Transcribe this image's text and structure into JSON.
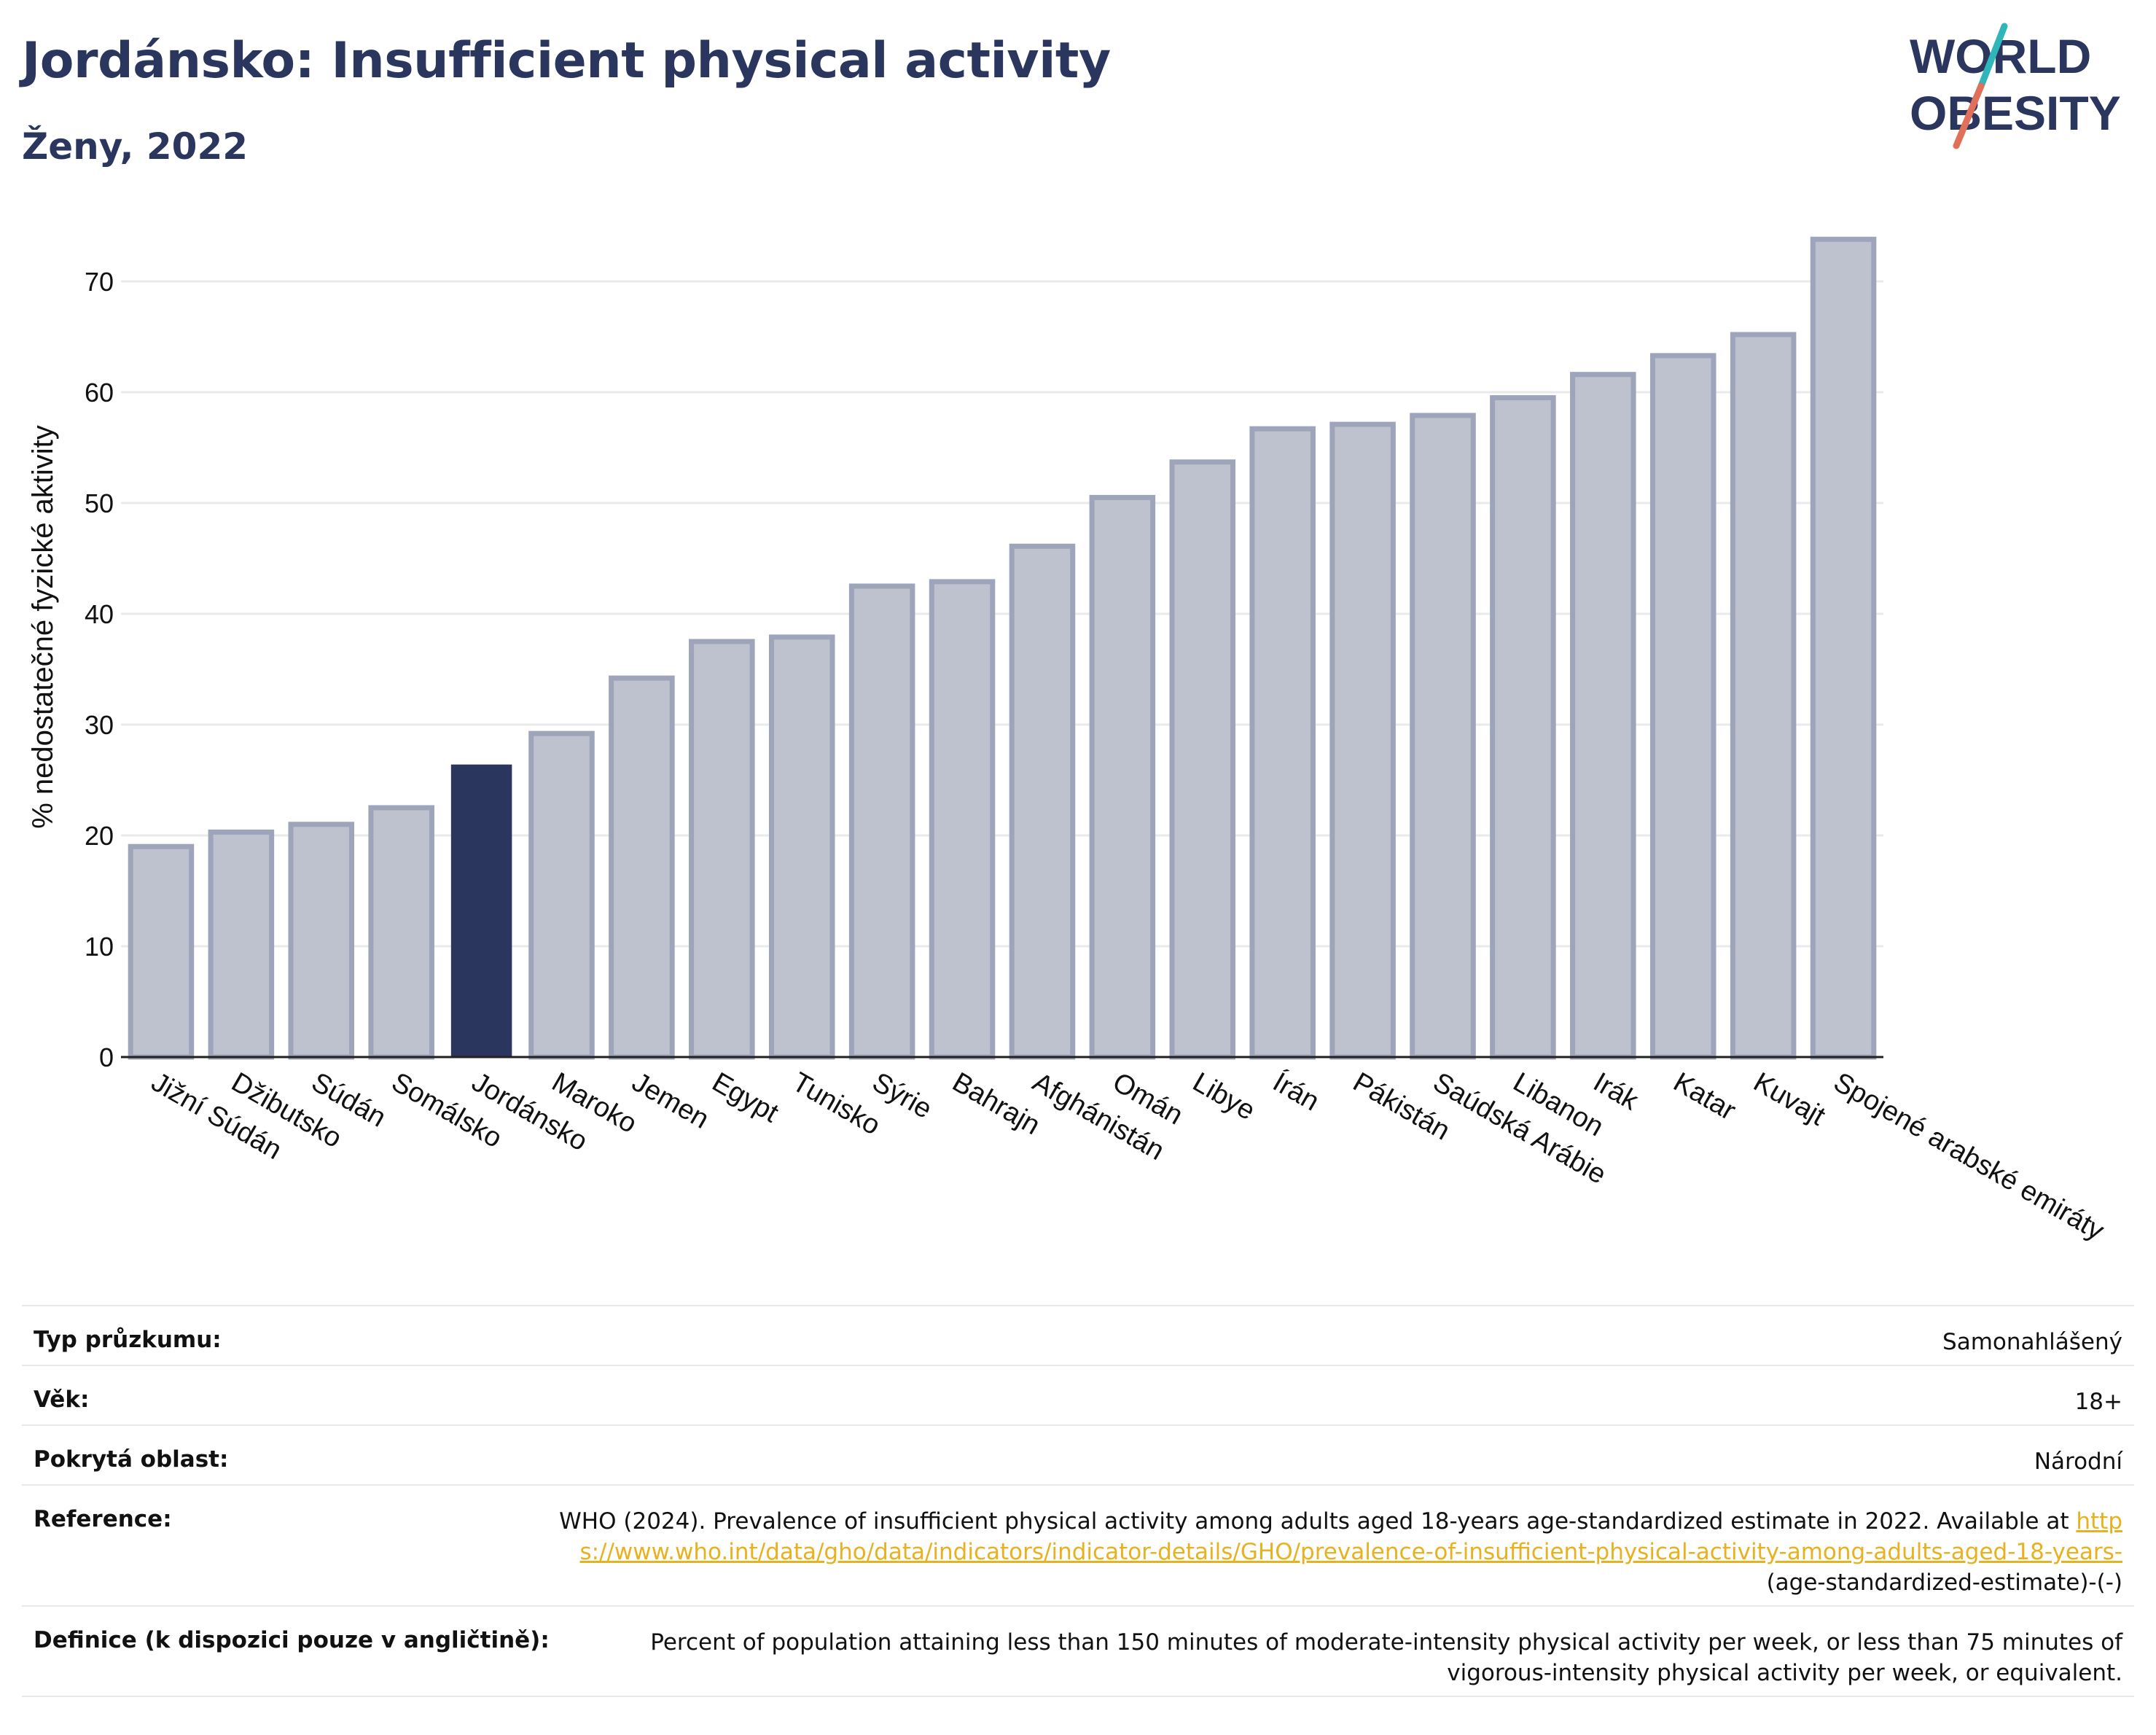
{
  "header": {
    "title": "Jordánsko: Insufficient physical activity",
    "subtitle": "Ženy, 2022"
  },
  "logo": {
    "line1": "WORLD",
    "line2": "OBESITY",
    "colors": {
      "text": "#2b365e",
      "slash_teal": "#2fb6b8",
      "slash_coral": "#e0705a"
    }
  },
  "colors": {
    "highlight_bar": "#2b365e",
    "other_bar_fill": "#bec2cf",
    "other_bar_stroke": "#9ea4ba",
    "grid": "#e8eaee"
  },
  "chart_data": {
    "type": "bar",
    "title": "",
    "xlabel": "",
    "ylabel": "% nedostatečné fyzické aktivity",
    "ylim": [
      0,
      75
    ],
    "yticks": [
      0,
      10,
      20,
      30,
      40,
      50,
      60,
      70
    ],
    "grid": true,
    "highlight": "Jordánsko",
    "categories": [
      "Jižní Súdán",
      "Džibutsko",
      "Súdán",
      "Somálsko",
      "Jordánsko",
      "Maroko",
      "Jemen",
      "Egypt",
      "Tunisko",
      "Sýrie",
      "Bahrajn",
      "Afghánistán",
      "Omán",
      "Libye",
      "Írán",
      "Pákistán",
      "Saúdská Arábie",
      "Libanon",
      "Irák",
      "Katar",
      "Kuvajt",
      "Spojené arabské emiráty"
    ],
    "values": [
      19.0,
      20.3,
      21.0,
      22.5,
      26.4,
      29.2,
      34.2,
      37.5,
      37.9,
      42.5,
      42.9,
      46.1,
      50.5,
      53.7,
      56.7,
      57.1,
      57.9,
      59.5,
      61.6,
      63.3,
      65.2,
      73.8
    ]
  },
  "info": {
    "survey_type": {
      "label": "Typ průzkumu:",
      "value": "Samonahlášený"
    },
    "age": {
      "label": "Věk:",
      "value": "18+"
    },
    "coverage": {
      "label": "Pokrytá oblast:",
      "value": "Národní"
    },
    "reference": {
      "label": "Reference:",
      "text": "WHO (2024). Prevalence of insufficient physical activity among adults aged 18-years age-standardized estimate in 2022. Available at",
      "link": "https://www.who.int/data/gho/data/indicators/indicator-details/GHO/prevalence-of-insufficient-physical-activity-among-adults-aged-18-years-",
      "suffix": "(age-standardized-estimate)-(-)"
    },
    "definition": {
      "label": "Definice (k dispozici pouze v angličtině):",
      "value": "Percent of population attaining less than 150 minutes of moderate-intensity physical activity per week, or less than 75 minutes of vigorous-intensity physical activity per week, or equivalent."
    }
  }
}
